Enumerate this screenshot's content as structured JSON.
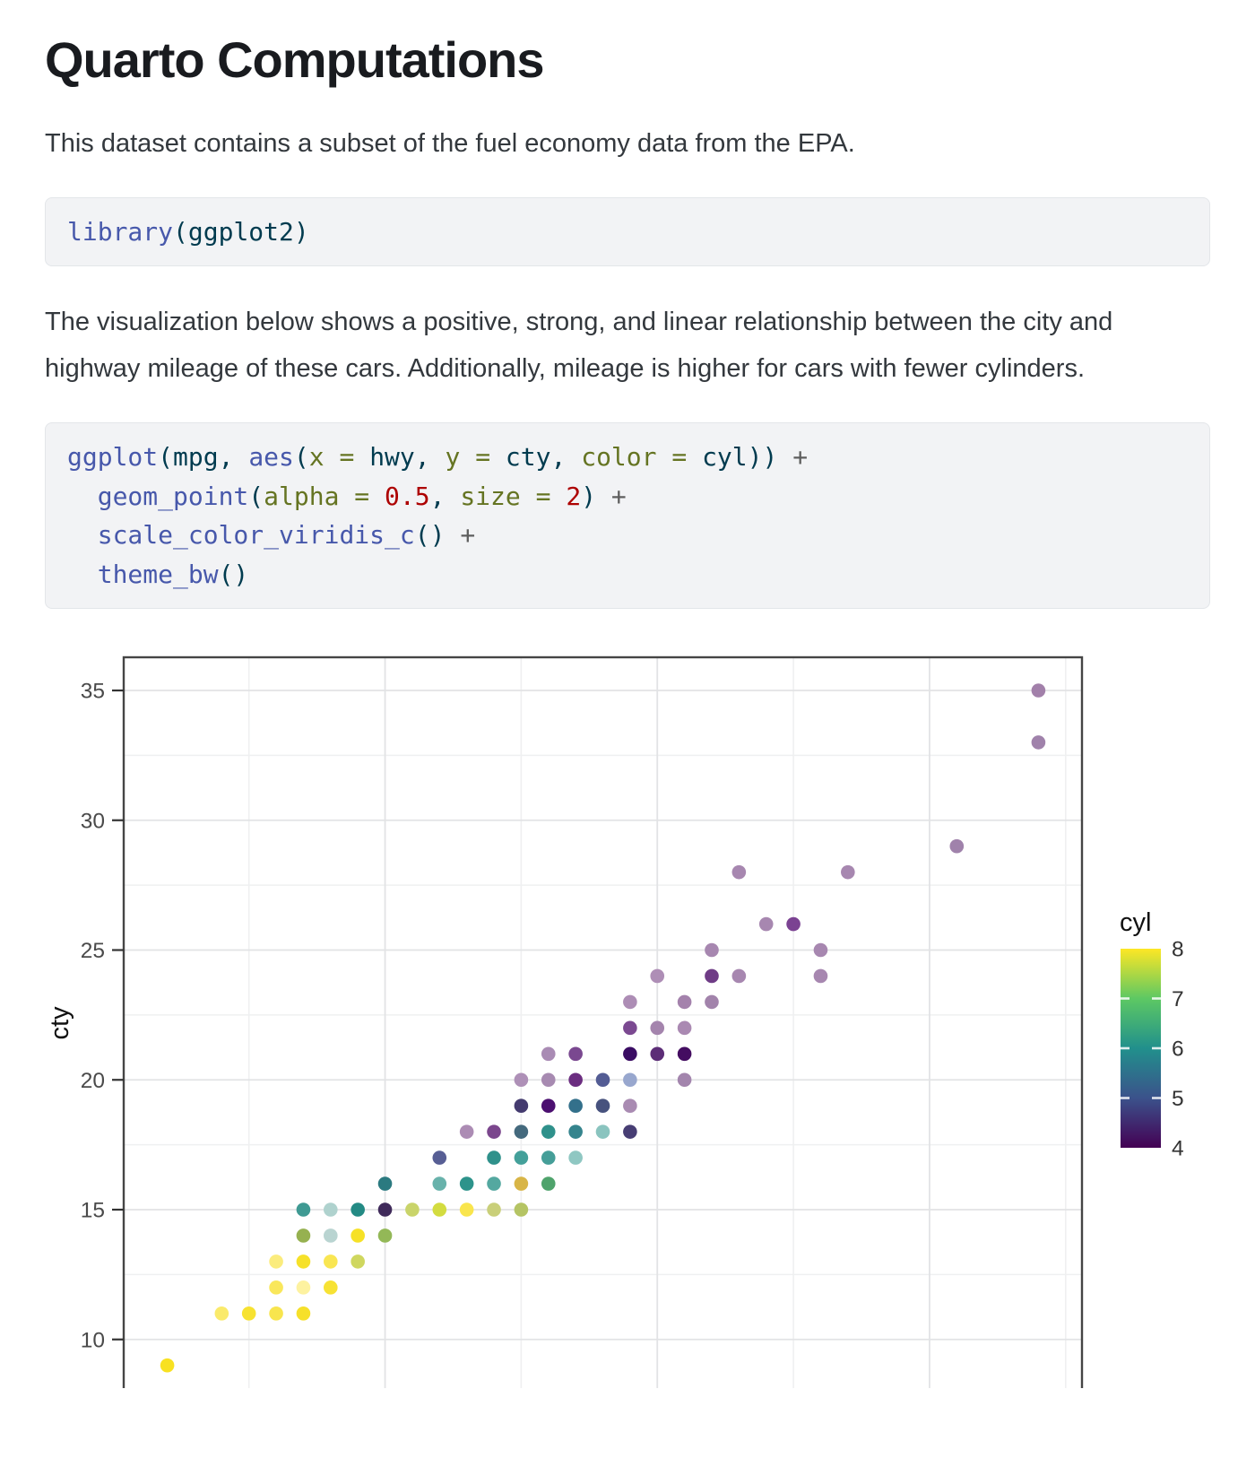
{
  "page": {
    "title": "Quarto Computations"
  },
  "paragraphs": {
    "p1": "This dataset contains a subset of the fuel economy data from the EPA.",
    "p2": "The visualization below shows a positive, strong, and linear relationship between the city and highway mileage of these cars. Additionally, mileage is higher for cars with fewer cylinders."
  },
  "syntax_colors": {
    "fu": "#4758AB",
    "pl": "#003B4F",
    "at": "#657422",
    "dv": "#AD0000",
    "op": "#5E5E5E"
  },
  "code_blocks": [
    {
      "name": "library-call",
      "lines": [
        [
          {
            "t": "library",
            "c": "fu"
          },
          {
            "t": "(ggplot2)",
            "c": "pl"
          }
        ]
      ]
    },
    {
      "name": "ggplot-call",
      "lines": [
        [
          {
            "t": "ggplot",
            "c": "fu"
          },
          {
            "t": "(mpg, ",
            "c": "pl"
          },
          {
            "t": "aes",
            "c": "fu"
          },
          {
            "t": "(",
            "c": "pl"
          },
          {
            "t": "x = ",
            "c": "at"
          },
          {
            "t": "hwy, ",
            "c": "pl"
          },
          {
            "t": "y = ",
            "c": "at"
          },
          {
            "t": "cty, ",
            "c": "pl"
          },
          {
            "t": "color = ",
            "c": "at"
          },
          {
            "t": "cyl)) ",
            "c": "pl"
          },
          {
            "t": "+",
            "c": "op"
          }
        ],
        [
          {
            "t": "  ",
            "c": "pl"
          },
          {
            "t": "geom_point",
            "c": "fu"
          },
          {
            "t": "(",
            "c": "pl"
          },
          {
            "t": "alpha = ",
            "c": "at"
          },
          {
            "t": "0.5",
            "c": "dv"
          },
          {
            "t": ", ",
            "c": "pl"
          },
          {
            "t": "size = ",
            "c": "at"
          },
          {
            "t": "2",
            "c": "dv"
          },
          {
            "t": ") ",
            "c": "pl"
          },
          {
            "t": "+",
            "c": "op"
          }
        ],
        [
          {
            "t": "  ",
            "c": "pl"
          },
          {
            "t": "scale_color_viridis_c",
            "c": "fu"
          },
          {
            "t": "() ",
            "c": "pl"
          },
          {
            "t": "+",
            "c": "op"
          }
        ],
        [
          {
            "t": "  ",
            "c": "pl"
          },
          {
            "t": "theme_bw",
            "c": "fu"
          },
          {
            "t": "()",
            "c": "pl"
          }
        ]
      ]
    }
  ],
  "chart_data": {
    "type": "scatter",
    "x_var": "hwy",
    "y_var": "cty",
    "color_var": "cyl",
    "ylabel": "cty",
    "x_domain": [
      10.4,
      45.6
    ],
    "y_domain": [
      7.7,
      36.3
    ],
    "y_ticks": [
      35,
      30,
      25,
      20,
      15,
      10
    ],
    "x_gridlines_major": [
      20,
      30,
      40
    ],
    "x_gridlines_minor": [
      15,
      25,
      35,
      45
    ],
    "y_gridlines_minor": [
      32.5,
      27.5,
      22.5,
      17.5,
      12.5
    ],
    "grid": "on",
    "legend": {
      "title": "cyl",
      "position": "right",
      "tick_labels": [
        "8",
        "7",
        "6",
        "5",
        "4"
      ],
      "gradient_top_to_bottom": [
        "#FDE725",
        "#5DC863",
        "#21908C",
        "#3B528B",
        "#440154"
      ]
    },
    "points": [
      {
        "hwy": 12,
        "cty": 9,
        "cyl": 8,
        "fill": "#F8E121"
      },
      {
        "hwy": 14,
        "cty": 11,
        "cyl": 8,
        "fill": "#FAEA6B"
      },
      {
        "hwy": 15,
        "cty": 11,
        "cyl": 8,
        "fill": "#F7E231"
      },
      {
        "hwy": 16,
        "cty": 11,
        "cyl": 8,
        "fill": "#F8E54E"
      },
      {
        "hwy": 17,
        "cty": 11,
        "cyl": 8,
        "fill": "#F6E02A"
      },
      {
        "hwy": 16,
        "cty": 12,
        "cyl": 8,
        "fill": "#F9E75B"
      },
      {
        "hwy": 17,
        "cty": 12,
        "cyl": 8,
        "fill": "#FDF2A0"
      },
      {
        "hwy": 18,
        "cty": 12,
        "cyl": 8,
        "fill": "#F7E234"
      },
      {
        "hwy": 16,
        "cty": 13,
        "cyl": 8,
        "fill": "#FBEC7D"
      },
      {
        "hwy": 17,
        "cty": 13,
        "cyl": 8,
        "fill": "#F6E129"
      },
      {
        "hwy": 18,
        "cty": 13,
        "cyl": 8,
        "fill": "#F9E652"
      },
      {
        "hwy": 19,
        "cty": 13,
        "cyl": 8,
        "fill": "#CFD75F"
      },
      {
        "hwy": 17,
        "cty": 14,
        "cyl": 8,
        "fill": "#96B150"
      },
      {
        "hwy": 18,
        "cty": 14,
        "cyl": 6,
        "fill": "#B9D4D1"
      },
      {
        "hwy": 19,
        "cty": 14,
        "cyl": 8,
        "fill": "#F6E126"
      },
      {
        "hwy": 20,
        "cty": 14,
        "cyl": 8,
        "fill": "#93B857"
      },
      {
        "hwy": 17,
        "cty": 15,
        "cyl": 6,
        "fill": "#3F9A93"
      },
      {
        "hwy": 18,
        "cty": 15,
        "cyl": 6,
        "fill": "#AFD2CE"
      },
      {
        "hwy": 19,
        "cty": 15,
        "cyl": 6,
        "fill": "#238A84"
      },
      {
        "hwy": 20,
        "cty": 15,
        "cyl": 4,
        "fill": "#3F2A5A"
      },
      {
        "hwy": 21,
        "cty": 15,
        "cyl": 8,
        "fill": "#C9D46A"
      },
      {
        "hwy": 22,
        "cty": 15,
        "cyl": 8,
        "fill": "#D3DC40"
      },
      {
        "hwy": 23,
        "cty": 15,
        "cyl": 8,
        "fill": "#F9E54D"
      },
      {
        "hwy": 24,
        "cty": 15,
        "cyl": 8,
        "fill": "#C9CF79"
      },
      {
        "hwy": 25,
        "cty": 15,
        "cyl": 8,
        "fill": "#B5C464"
      },
      {
        "hwy": 20,
        "cty": 16,
        "cyl": 6,
        "fill": "#2B7A80"
      },
      {
        "hwy": 22,
        "cty": 16,
        "cyl": 6,
        "fill": "#68B2AB"
      },
      {
        "hwy": 23,
        "cty": 16,
        "cyl": 6,
        "fill": "#2D938B"
      },
      {
        "hwy": 24,
        "cty": 16,
        "cyl": 6,
        "fill": "#54A8A0"
      },
      {
        "hwy": 25,
        "cty": 16,
        "cyl": 8,
        "fill": "#D8B547"
      },
      {
        "hwy": 26,
        "cty": 16,
        "cyl": 8,
        "fill": "#4FA36C"
      },
      {
        "hwy": 22,
        "cty": 17,
        "cyl": 5,
        "fill": "#575E94"
      },
      {
        "hwy": 24,
        "cty": 17,
        "cyl": 6,
        "fill": "#2F918B"
      },
      {
        "hwy": 25,
        "cty": 17,
        "cyl": 6,
        "fill": "#44A09A"
      },
      {
        "hwy": 26,
        "cty": 17,
        "cyl": 6,
        "fill": "#459E98"
      },
      {
        "hwy": 27,
        "cty": 17,
        "cyl": 6,
        "fill": "#8FC7C2"
      },
      {
        "hwy": 23,
        "cty": 18,
        "cyl": 4,
        "fill": "#AC8CB4"
      },
      {
        "hwy": 24,
        "cty": 18,
        "cyl": 4,
        "fill": "#7B468D"
      },
      {
        "hwy": 25,
        "cty": 18,
        "cyl": 6,
        "fill": "#44697D"
      },
      {
        "hwy": 26,
        "cty": 18,
        "cyl": 6,
        "fill": "#2F918B"
      },
      {
        "hwy": 27,
        "cty": 18,
        "cyl": 6,
        "fill": "#35848D"
      },
      {
        "hwy": 28,
        "cty": 18,
        "cyl": 6,
        "fill": "#8AC4BF"
      },
      {
        "hwy": 29,
        "cty": 18,
        "cyl": 4,
        "fill": "#473E74"
      },
      {
        "hwy": 25,
        "cty": 19,
        "cyl": 4,
        "fill": "#443B6F"
      },
      {
        "hwy": 26,
        "cty": 19,
        "cyl": 4,
        "fill": "#4B0F70"
      },
      {
        "hwy": 27,
        "cty": 19,
        "cyl": 6,
        "fill": "#33708B"
      },
      {
        "hwy": 28,
        "cty": 19,
        "cyl": 5,
        "fill": "#47527E"
      },
      {
        "hwy": 29,
        "cty": 19,
        "cyl": 4,
        "fill": "#A98BB2"
      },
      {
        "hwy": 25,
        "cty": 20,
        "cyl": 4,
        "fill": "#AE90B7"
      },
      {
        "hwy": 26,
        "cty": 20,
        "cyl": 4,
        "fill": "#A78AB1"
      },
      {
        "hwy": 27,
        "cty": 20,
        "cyl": 4,
        "fill": "#6B2D80"
      },
      {
        "hwy": 28,
        "cty": 20,
        "cyl": 5,
        "fill": "#535C94"
      },
      {
        "hwy": 29,
        "cty": 20,
        "cyl": 5,
        "fill": "#98A7CE"
      },
      {
        "hwy": 31,
        "cty": 20,
        "cyl": 4,
        "fill": "#A385AD"
      },
      {
        "hwy": 26,
        "cty": 21,
        "cyl": 4,
        "fill": "#A98BB4"
      },
      {
        "hwy": 27,
        "cty": 21,
        "cyl": 4,
        "fill": "#7A4890"
      },
      {
        "hwy": 29,
        "cty": 21,
        "cyl": 4,
        "fill": "#3A0C63"
      },
      {
        "hwy": 30,
        "cty": 21,
        "cyl": 4,
        "fill": "#5C2D77"
      },
      {
        "hwy": 31,
        "cty": 21,
        "cyl": 4,
        "fill": "#440D61"
      },
      {
        "hwy": 29,
        "cty": 22,
        "cyl": 4,
        "fill": "#7B4991"
      },
      {
        "hwy": 30,
        "cty": 22,
        "cyl": 4,
        "fill": "#A484AD"
      },
      {
        "hwy": 31,
        "cty": 22,
        "cyl": 4,
        "fill": "#AA89B2"
      },
      {
        "hwy": 29,
        "cty": 23,
        "cyl": 4,
        "fill": "#AD8DB5"
      },
      {
        "hwy": 31,
        "cty": 23,
        "cyl": 4,
        "fill": "#A482AC"
      },
      {
        "hwy": 32,
        "cty": 23,
        "cyl": 4,
        "fill": "#A283AB"
      },
      {
        "hwy": 30,
        "cty": 24,
        "cyl": 4,
        "fill": "#AE8EB6"
      },
      {
        "hwy": 32,
        "cty": 24,
        "cyl": 4,
        "fill": "#6F3C86"
      },
      {
        "hwy": 33,
        "cty": 24,
        "cyl": 4,
        "fill": "#A787B0"
      },
      {
        "hwy": 36,
        "cty": 24,
        "cyl": 4,
        "fill": "#A787B0"
      },
      {
        "hwy": 32,
        "cty": 25,
        "cyl": 4,
        "fill": "#A787B0"
      },
      {
        "hwy": 36,
        "cty": 25,
        "cyl": 4,
        "fill": "#A787B0"
      },
      {
        "hwy": 34,
        "cty": 26,
        "cyl": 4,
        "fill": "#A787B0"
      },
      {
        "hwy": 35,
        "cty": 26,
        "cyl": 4,
        "fill": "#7B4292"
      },
      {
        "hwy": 33,
        "cty": 28,
        "cyl": 4,
        "fill": "#A787B0"
      },
      {
        "hwy": 37,
        "cty": 28,
        "cyl": 4,
        "fill": "#A787B0"
      },
      {
        "hwy": 41,
        "cty": 29,
        "cyl": 4,
        "fill": "#A082AB"
      },
      {
        "hwy": 44,
        "cty": 33,
        "cyl": 4,
        "fill": "#A082AB"
      },
      {
        "hwy": 44,
        "cty": 35,
        "cyl": 4,
        "fill": "#A280AA"
      }
    ],
    "style": {
      "panel_border": "#454545",
      "grid_major": "#e2e3e5",
      "grid_minor": "#eff0f1",
      "tick_label_color": "#4a4a4a",
      "axis_title_color": "#111111",
      "point_radius": 7.8
    }
  }
}
